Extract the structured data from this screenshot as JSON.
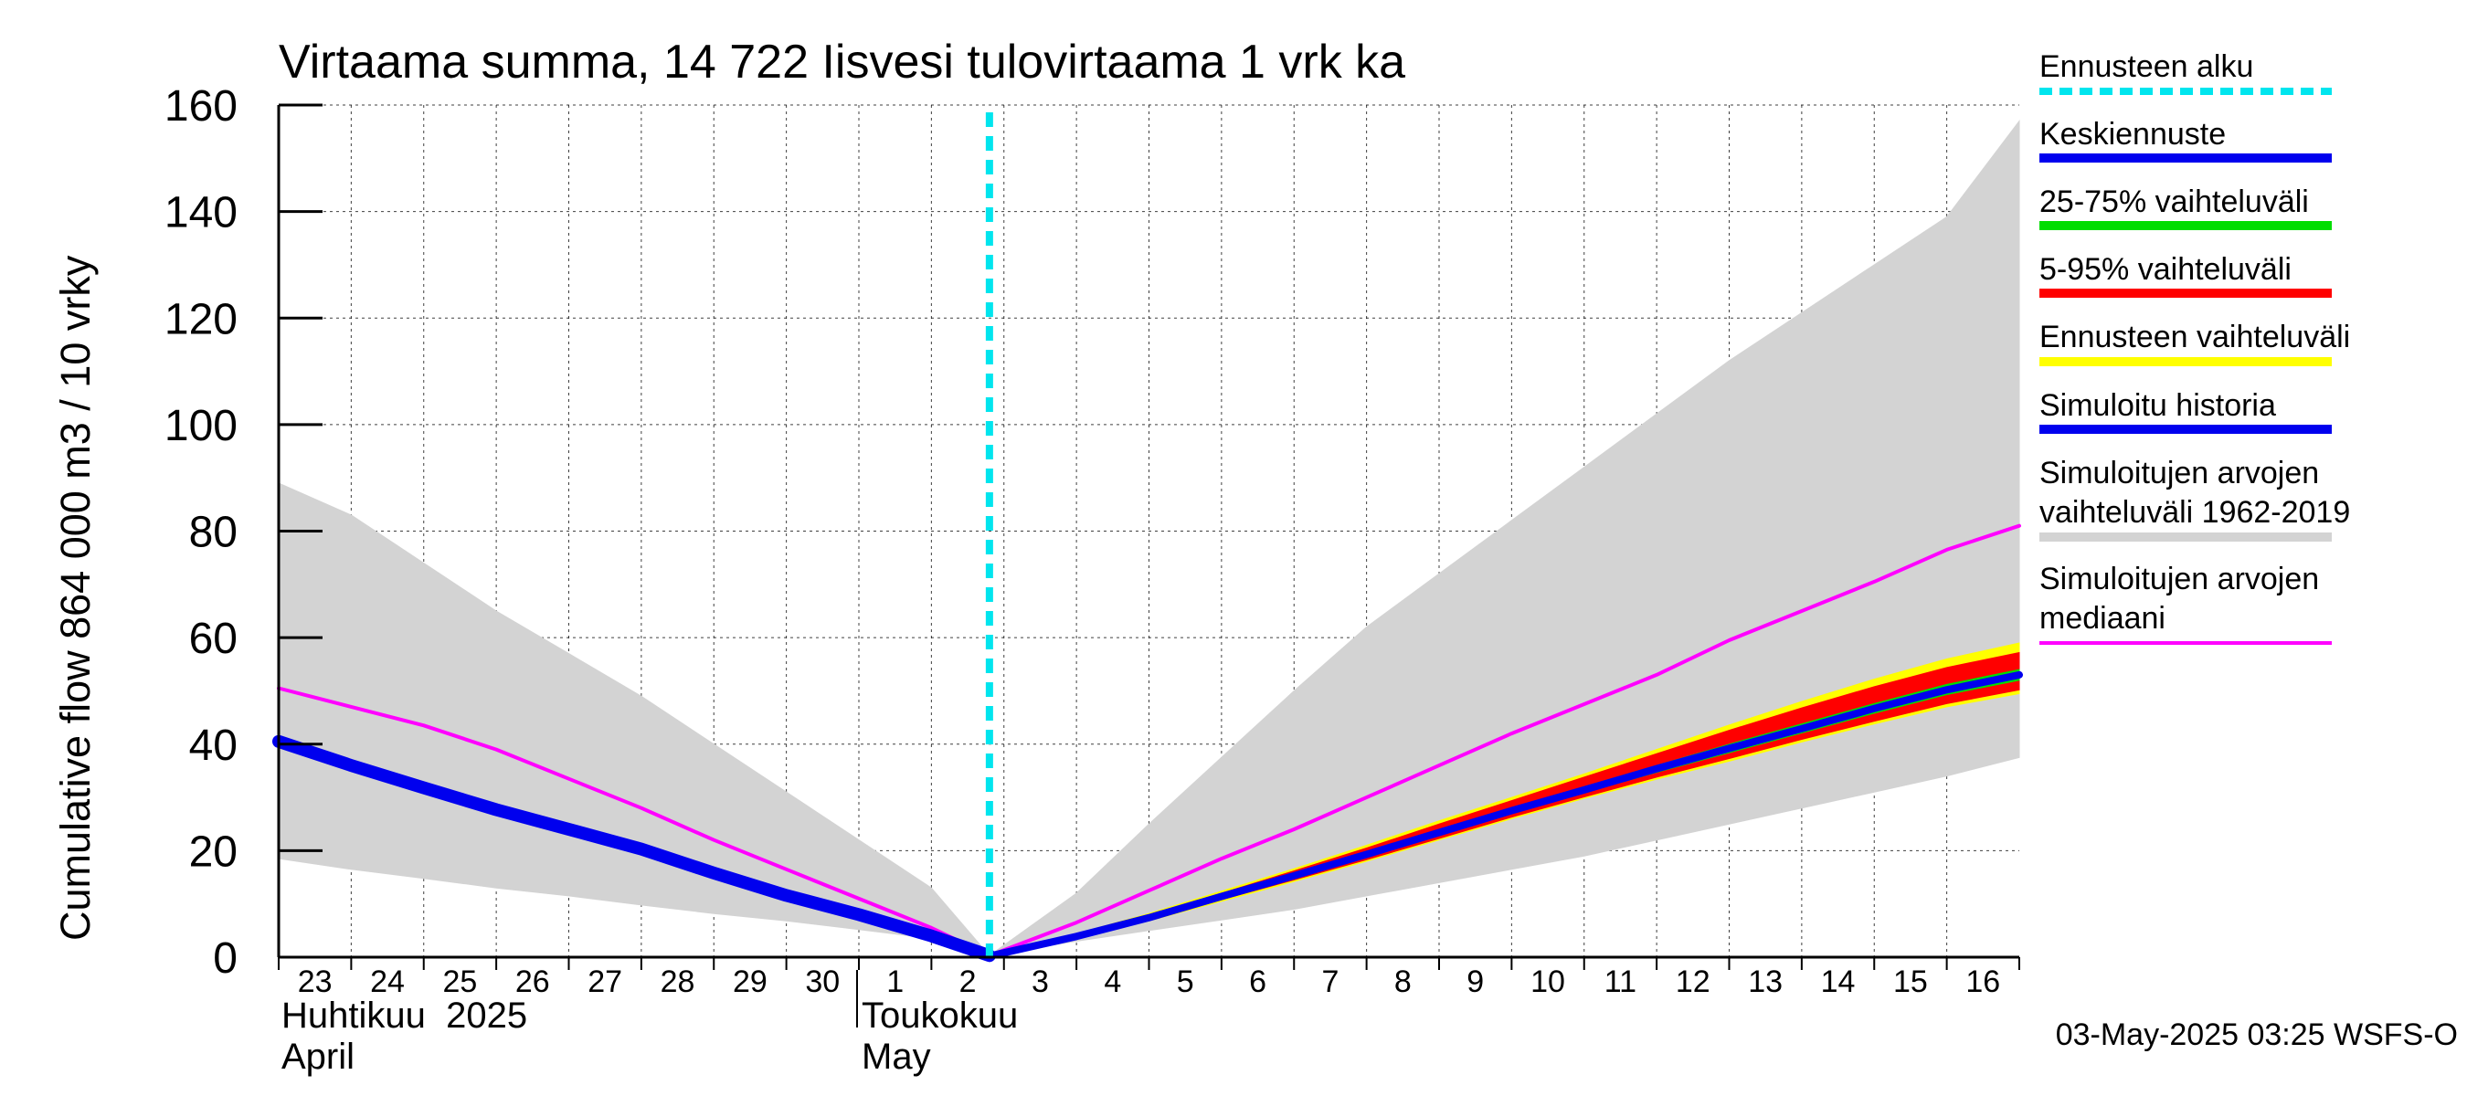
{
  "chart_data": {
    "type": "area",
    "title": "Virtaama summa, 14 722 Iisvesi tulovirtaama 1 vrk ka",
    "ylabel": "Cumulative flow    864 000 m3 / 10 vrky",
    "ylim": [
      0,
      160
    ],
    "yticks": [
      0,
      20,
      40,
      60,
      80,
      100,
      120,
      140,
      160
    ],
    "x_day_labels": [
      "23",
      "24",
      "25",
      "26",
      "27",
      "28",
      "29",
      "30",
      "1",
      "2",
      "3",
      "4",
      "5",
      "6",
      "7",
      "8",
      "9",
      "10",
      "11",
      "12",
      "13",
      "14",
      "15",
      "16"
    ],
    "x_range_days": [
      0,
      24
    ],
    "month_labels": [
      {
        "fi": "Huhtikuu  2025",
        "en": "April",
        "start_day": 0
      },
      {
        "fi": "Toukokuu",
        "en": "May",
        "start_day": 8
      }
    ],
    "forecast_start_day": 9.8,
    "series": [
      {
        "name": "Simuloitujen arvojen vaihteluväli 1962-2019",
        "kind": "band",
        "color": "#d3d3d3",
        "x": [
          0,
          1,
          2,
          3,
          4,
          5,
          6,
          7,
          8,
          9,
          9.8,
          11,
          12,
          13,
          14,
          15,
          16,
          17,
          18,
          19,
          20,
          21,
          22,
          23,
          24
        ],
        "low": [
          18.5,
          16.5,
          14.8,
          13,
          11.5,
          9.8,
          8.2,
          6.8,
          5.2,
          3.5,
          0.3,
          3,
          5,
          7,
          9,
          11.5,
          14,
          16.5,
          19,
          22,
          25,
          28,
          31,
          34,
          37.5
        ],
        "high": [
          89,
          83,
          74,
          65,
          57,
          49,
          40,
          31,
          22,
          13,
          0.3,
          12,
          25,
          37.5,
          50,
          62,
          72,
          82,
          92,
          102,
          112,
          121,
          130,
          139,
          157
        ]
      },
      {
        "name": "Ennusteen vaihteluväli",
        "kind": "band",
        "color": "#ffff00",
        "x": [
          9.8,
          11,
          12,
          13,
          14,
          15,
          16,
          17,
          18,
          19,
          20,
          21,
          22,
          23,
          24
        ],
        "low": [
          0.2,
          3.5,
          6.8,
          10.5,
          14.2,
          18.0,
          22.0,
          26.0,
          29.8,
          33.4,
          36.8,
          40.4,
          43.8,
          47.0,
          49.5
        ],
        "high": [
          0.2,
          4.4,
          8.2,
          12.4,
          16.6,
          21.0,
          25.6,
          30.0,
          34.4,
          39.0,
          43.6,
          48.0,
          52.2,
          56.0,
          59.0
        ]
      },
      {
        "name": "5-95% vaihteluväli",
        "kind": "band",
        "color": "#ff0000",
        "x": [
          9.8,
          11,
          12,
          13,
          14,
          15,
          16,
          17,
          18,
          19,
          20,
          21,
          22,
          23,
          24
        ],
        "low": [
          0.2,
          3.7,
          7.0,
          10.8,
          14.5,
          18.3,
          22.3,
          26.3,
          30.1,
          33.8,
          37.3,
          40.9,
          44.3,
          47.6,
          50.2
        ],
        "high": [
          0.2,
          4.2,
          7.9,
          12.0,
          16.2,
          20.5,
          25.0,
          29.4,
          33.8,
          38.2,
          42.6,
          46.8,
          50.8,
          54.4,
          57.2
        ]
      },
      {
        "name": "25-75% vaihteluväli",
        "kind": "band",
        "color": "#00dd00",
        "x": [
          9.8,
          11,
          12,
          13,
          14,
          15,
          16,
          17,
          18,
          19,
          20,
          21,
          22,
          23,
          24
        ],
        "low": [
          0.2,
          3.9,
          7.3,
          11.2,
          15.0,
          18.9,
          23.0,
          27.0,
          30.9,
          34.7,
          38.4,
          42.1,
          45.8,
          49.3,
          52.0
        ],
        "high": [
          0.2,
          4.0,
          7.6,
          11.6,
          15.6,
          19.6,
          23.8,
          28.0,
          32.0,
          36.0,
          40.0,
          43.8,
          47.6,
          51.2,
          54.0
        ]
      },
      {
        "name": "Simuloitujen arvojen mediaani",
        "kind": "line",
        "color": "#ff00ff",
        "width": 4,
        "x": [
          0,
          1,
          2,
          3,
          4,
          5,
          6,
          7,
          8,
          9,
          9.8,
          11,
          12,
          13,
          14,
          15,
          16,
          17,
          18,
          19,
          20,
          21,
          22,
          23,
          24
        ],
        "y": [
          50.5,
          47,
          43.5,
          39,
          33.5,
          28,
          22,
          16.5,
          11,
          5.5,
          0.3,
          6.5,
          12.5,
          18.5,
          24,
          30,
          36,
          42,
          47.5,
          53,
          59.5,
          65,
          70.5,
          76.5,
          81
        ]
      },
      {
        "name": "Simuloitu historia",
        "kind": "line",
        "color": "#0000ee",
        "width": 14,
        "x": [
          0,
          1,
          2,
          3,
          4,
          5,
          6,
          7,
          8,
          9,
          9.8
        ],
        "y": [
          40.5,
          36,
          31.8,
          27.7,
          24,
          20.3,
          15.8,
          11.6,
          8,
          4,
          0.3
        ]
      },
      {
        "name": "Keskiennuste",
        "kind": "line",
        "color": "#0000ee",
        "width": 8,
        "x": [
          9.8,
          11,
          12,
          13,
          14,
          15,
          16,
          17,
          18,
          19,
          20,
          21,
          22,
          23,
          24
        ],
        "y": [
          0.2,
          3.9,
          7.4,
          11.4,
          15.3,
          19.3,
          23.4,
          27.5,
          31.4,
          35.4,
          39.2,
          42.9,
          46.7,
          50.2,
          53.0
        ]
      }
    ],
    "legend_position": "right"
  },
  "legend": {
    "items": [
      {
        "label": "Ennusteen alku",
        "color": "#00e5ee",
        "style": "dashed"
      },
      {
        "label": "Keskiennuste",
        "color": "#0000ee",
        "style": "solid"
      },
      {
        "label": "25-75% vaihteluväli",
        "color": "#00dd00",
        "style": "solid"
      },
      {
        "label": "5-95% vaihteluväli",
        "color": "#ff0000",
        "style": "solid"
      },
      {
        "label": "Ennusteen vaihteluväli",
        "color": "#ffff00",
        "style": "solid"
      },
      {
        "label": "Simuloitu historia",
        "color": "#0000ee",
        "style": "solid"
      },
      {
        "label": "Simuloitujen arvojen",
        "label2": "vaihteluväli 1962-2019",
        "color": "#d3d3d3",
        "style": "solid"
      },
      {
        "label": "Simuloitujen arvojen",
        "label2": "mediaani",
        "color": "#ff00ff",
        "style": "thin"
      }
    ]
  },
  "footer": {
    "timestamp": "03-May-2025 03:25 WSFS-O"
  }
}
